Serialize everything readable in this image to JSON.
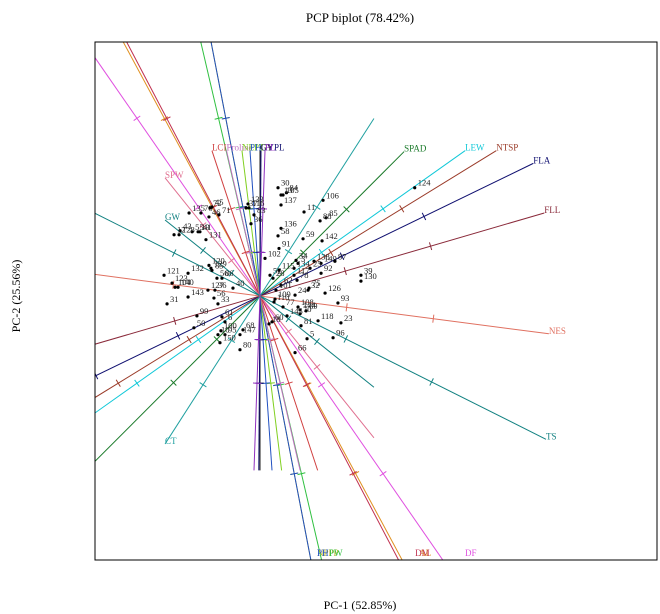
{
  "chart_data": {
    "type": "scatter",
    "title": "PCP biplot (78.42%)",
    "xlabel": "PC-1  (52.85%)",
    "ylabel": "PC-2  (25.56%)",
    "xlim": [
      -1,
      1
    ],
    "ylim": [
      -1,
      1
    ],
    "grid": false,
    "legend": "none",
    "origin": [
      0,
      0
    ],
    "points": [
      {
        "label": "30",
        "x": 0.126,
        "y": 0.742
      },
      {
        "label": "84",
        "x": 0.185,
        "y": 0.708
      },
      {
        "label": "13",
        "x": 0.147,
        "y": 0.692
      },
      {
        "label": "105",
        "x": 0.161,
        "y": 0.692
      },
      {
        "label": "106",
        "x": 0.441,
        "y": 0.656
      },
      {
        "label": "124",
        "x": 1.082,
        "y": 0.742
      },
      {
        "label": "137",
        "x": 0.147,
        "y": 0.624
      },
      {
        "label": "11",
        "x": 0.308,
        "y": 0.576
      },
      {
        "label": "85",
        "x": 0.462,
        "y": 0.536
      },
      {
        "label": "88",
        "x": 0.42,
        "y": 0.515
      },
      {
        "label": "136",
        "x": 0.147,
        "y": 0.464
      },
      {
        "label": "58",
        "x": 0.126,
        "y": 0.412
      },
      {
        "label": "59",
        "x": 0.301,
        "y": 0.392
      },
      {
        "label": "142",
        "x": 0.434,
        "y": 0.378
      },
      {
        "label": "91",
        "x": 0.133,
        "y": 0.326
      },
      {
        "label": "102",
        "x": 0.035,
        "y": 0.258
      },
      {
        "label": "34",
        "x": 0.252,
        "y": 0.244
      },
      {
        "label": "3",
        "x": 0.266,
        "y": 0.224
      },
      {
        "label": "138",
        "x": 0.378,
        "y": 0.238
      },
      {
        "label": "149",
        "x": 0.427,
        "y": 0.224
      },
      {
        "label": "87",
        "x": 0.524,
        "y": 0.238
      },
      {
        "label": "25",
        "x": 0.35,
        "y": 0.19
      },
      {
        "label": "134",
        "x": 0.238,
        "y": 0.19
      },
      {
        "label": "115",
        "x": 0.133,
        "y": 0.176
      },
      {
        "label": "92",
        "x": 0.427,
        "y": 0.156
      },
      {
        "label": "117",
        "x": 0.238,
        "y": 0.142
      },
      {
        "label": "78",
        "x": 0.259,
        "y": 0.108
      },
      {
        "label": "39",
        "x": 0.706,
        "y": 0.142
      },
      {
        "label": "130",
        "x": 0.706,
        "y": 0.102
      },
      {
        "label": "52",
        "x": 0.07,
        "y": 0.142
      },
      {
        "label": "28",
        "x": 0.091,
        "y": 0.122
      },
      {
        "label": "62",
        "x": 0.147,
        "y": 0.074
      },
      {
        "label": "32",
        "x": 0.336,
        "y": 0.04
      },
      {
        "label": "75",
        "x": 0.343,
        "y": 0.054
      },
      {
        "label": "126",
        "x": 0.455,
        "y": 0.02
      },
      {
        "label": "24",
        "x": 0.245,
        "y": 0.006
      },
      {
        "label": "101",
        "x": 0.112,
        "y": 0.04
      },
      {
        "label": "109",
        "x": 0.105,
        "y": -0.021
      },
      {
        "label": "110",
        "x": 0.098,
        "y": -0.041
      },
      {
        "label": "93",
        "x": 0.545,
        "y": -0.048
      },
      {
        "label": "77",
        "x": 0.161,
        "y": -0.075
      },
      {
        "label": "108",
        "x": 0.266,
        "y": -0.075
      },
      {
        "label": "144",
        "x": 0.28,
        "y": -0.095
      },
      {
        "label": "69",
        "x": 0.322,
        "y": -0.102
      },
      {
        "label": "70",
        "x": 0.28,
        "y": -0.122
      },
      {
        "label": "145",
        "x": 0.189,
        "y": -0.136
      },
      {
        "label": "118",
        "x": 0.406,
        "y": -0.17
      },
      {
        "label": "23",
        "x": 0.566,
        "y": -0.184
      },
      {
        "label": "60",
        "x": 0.084,
        "y": -0.177
      },
      {
        "label": "18",
        "x": 0.063,
        "y": -0.191
      },
      {
        "label": "81",
        "x": 0.287,
        "y": -0.204
      },
      {
        "label": "96",
        "x": 0.511,
        "y": -0.286
      },
      {
        "label": "5",
        "x": 0.329,
        "y": -0.293
      },
      {
        "label": "66",
        "x": 0.245,
        "y": -0.388
      },
      {
        "label": "135",
        "x": -0.496,
        "y": 0.569
      },
      {
        "label": "76",
        "x": -0.413,
        "y": 0.569
      },
      {
        "label": "72",
        "x": -0.35,
        "y": 0.604
      },
      {
        "label": "45",
        "x": -0.336,
        "y": 0.61
      },
      {
        "label": "46",
        "x": -0.357,
        "y": 0.542
      },
      {
        "label": "71",
        "x": -0.287,
        "y": 0.556
      },
      {
        "label": "133",
        "x": -0.084,
        "y": 0.631
      },
      {
        "label": "37",
        "x": -0.098,
        "y": 0.604
      },
      {
        "label": "116",
        "x": -0.077,
        "y": 0.604
      },
      {
        "label": "83",
        "x": -0.042,
        "y": 0.556
      },
      {
        "label": "36",
        "x": -0.063,
        "y": 0.495
      },
      {
        "label": "43",
        "x": -0.559,
        "y": 0.447
      },
      {
        "label": "55",
        "x": -0.475,
        "y": 0.44
      },
      {
        "label": "19",
        "x": -0.433,
        "y": 0.44
      },
      {
        "label": "41",
        "x": -0.42,
        "y": 0.44
      },
      {
        "label": "12",
        "x": -0.601,
        "y": 0.42
      },
      {
        "label": "128",
        "x": -0.566,
        "y": 0.42
      },
      {
        "label": "131",
        "x": -0.378,
        "y": 0.386
      },
      {
        "label": "121",
        "x": -0.671,
        "y": 0.142
      },
      {
        "label": "132",
        "x": -0.503,
        "y": 0.156
      },
      {
        "label": "120",
        "x": -0.357,
        "y": 0.21
      },
      {
        "label": "129",
        "x": -0.343,
        "y": 0.19
      },
      {
        "label": "85",
        "x": -0.336,
        "y": 0.176
      },
      {
        "label": "56",
        "x": -0.301,
        "y": 0.122
      },
      {
        "label": "86",
        "x": -0.266,
        "y": 0.122
      },
      {
        "label": "123",
        "x": -0.615,
        "y": 0.088
      },
      {
        "label": "104",
        "x": -0.594,
        "y": 0.06
      },
      {
        "label": "140",
        "x": -0.573,
        "y": 0.06
      },
      {
        "label": "127",
        "x": -0.364,
        "y": 0.04
      },
      {
        "label": "36",
        "x": -0.315,
        "y": 0.04
      },
      {
        "label": "40",
        "x": -0.189,
        "y": 0.054
      },
      {
        "label": "143",
        "x": -0.503,
        "y": -0.007
      },
      {
        "label": "56",
        "x": -0.322,
        "y": -0.014
      },
      {
        "label": "33",
        "x": -0.294,
        "y": -0.054
      },
      {
        "label": "31",
        "x": -0.65,
        "y": -0.054
      },
      {
        "label": "99",
        "x": -0.441,
        "y": -0.136
      },
      {
        "label": "61",
        "x": -0.266,
        "y": -0.143
      },
      {
        "label": "6",
        "x": -0.245,
        "y": -0.177
      },
      {
        "label": "50",
        "x": -0.462,
        "y": -0.218
      },
      {
        "label": "68",
        "x": -0.119,
        "y": -0.232
      },
      {
        "label": "100",
        "x": -0.273,
        "y": -0.238
      },
      {
        "label": "10",
        "x": -0.294,
        "y": -0.265
      },
      {
        "label": "95",
        "x": -0.245,
        "y": -0.265
      },
      {
        "label": "147",
        "x": -0.14,
        "y": -0.265
      },
      {
        "label": "150",
        "x": -0.28,
        "y": -0.32
      },
      {
        "label": "80",
        "x": -0.14,
        "y": -0.368
      }
    ],
    "vectors": [
      {
        "label": "SPAD",
        "x": 1.008,
        "y": 0.99,
        "color": "#1a7a2a"
      },
      {
        "label": "LEW",
        "x": 1.434,
        "y": 0.996,
        "color": "#10c8d8"
      },
      {
        "label": "NTSP",
        "x": 1.652,
        "y": 0.996,
        "color": "#9a3a28"
      },
      {
        "label": "FLA",
        "x": 1.911,
        "y": 0.909,
        "color": "#101070"
      },
      {
        "label": "FLL",
        "x": 1.988,
        "y": 0.569,
        "color": "#8a2a3a"
      },
      {
        "label": "NES",
        "x": 2.02,
        "y": -0.259,
        "color": "#e07060"
      },
      {
        "label": "TS",
        "x": 2.0,
        "y": -0.982,
        "color": "#108080"
      },
      {
        "label": "DF",
        "x": 1.434,
        "y": -2.03,
        "color": "#e050e0"
      },
      {
        "label": "AL",
        "x": 1.113,
        "y": -2.026,
        "color": "#e09020"
      },
      {
        "label": "DM",
        "x": 1.085,
        "y": -2.026,
        "color": "#c03050"
      },
      {
        "label": "NPPP",
        "x": 0.399,
        "y": -2.03,
        "color": "#b0b020"
      },
      {
        "label": "PW",
        "x": 0.483,
        "y": -2.03,
        "color": "#30c040"
      },
      {
        "label": "PH",
        "x": 0.399,
        "y": -2.03,
        "color": "#2050c0"
      },
      {
        "label": "SPW",
        "x": -0.664,
        "y": 0.81,
        "color": "#e07090"
      },
      {
        "label": "GW",
        "x": -0.664,
        "y": 0.521,
        "color": "#108080"
      },
      {
        "label": "CT",
        "x": -0.664,
        "y": -1.014,
        "color": "#20a0a0"
      },
      {
        "label": "GY",
        "x": 0.0,
        "y": 0.996,
        "color": "#202020"
      },
      {
        "label": "LCI",
        "x": -0.336,
        "y": 0.996,
        "color": "#d04040"
      },
      {
        "label": "Proline",
        "x": -0.234,
        "y": 0.996,
        "color": "#c070c0"
      },
      {
        "label": "NEPT",
        "x": -0.126,
        "y": 0.996,
        "color": "#80d020"
      },
      {
        "label": "PH",
        "x": -0.07,
        "y": 0.996,
        "color": "#2050c0"
      },
      {
        "label": "GYPL",
        "x": 0.007,
        "y": 0.996,
        "color": "#101070"
      },
      {
        "label": "PL",
        "x": 0.035,
        "y": 0.996,
        "color": "#9030c0"
      }
    ]
  }
}
